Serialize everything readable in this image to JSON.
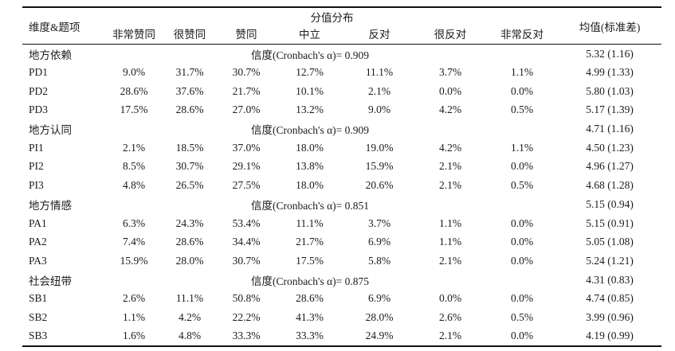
{
  "table": {
    "header": {
      "dimension_item": "维度&题项",
      "score_distribution": "分值分布",
      "mean_sd": "均值(标准差)",
      "scale_labels": [
        "非常赞同",
        "很赞同",
        "赞同",
        "中立",
        "反对",
        "很反对",
        "非常反对"
      ]
    },
    "groups": [
      {
        "dimension": "地方依赖",
        "reliability": "信度(Cronbach's α)= 0.909",
        "mean_sd": "5.32 (1.16)",
        "items": [
          {
            "label": "PD1",
            "values": [
              "9.0%",
              "31.7%",
              "30.7%",
              "12.7%",
              "11.1%",
              "3.7%",
              "1.1%"
            ],
            "mean_sd": "4.99 (1.33)"
          },
          {
            "label": "PD2",
            "values": [
              "28.6%",
              "37.6%",
              "21.7%",
              "10.1%",
              "2.1%",
              "0.0%",
              "0.0%"
            ],
            "mean_sd": "5.80 (1.03)"
          },
          {
            "label": "PD3",
            "values": [
              "17.5%",
              "28.6%",
              "27.0%",
              "13.2%",
              "9.0%",
              "4.2%",
              "0.5%"
            ],
            "mean_sd": "5.17 (1.39)"
          }
        ]
      },
      {
        "dimension": "地方认同",
        "reliability": "信度(Cronbach's α)= 0.909",
        "mean_sd": "4.71 (1.16)",
        "items": [
          {
            "label": "PI1",
            "values": [
              "2.1%",
              "18.5%",
              "37.0%",
              "18.0%",
              "19.0%",
              "4.2%",
              "1.1%"
            ],
            "mean_sd": "4.50 (1.23)"
          },
          {
            "label": "PI2",
            "values": [
              "8.5%",
              "30.7%",
              "29.1%",
              "13.8%",
              "15.9%",
              "2.1%",
              "0.0%"
            ],
            "mean_sd": "4.96 (1.27)"
          },
          {
            "label": "PI3",
            "values": [
              "4.8%",
              "26.5%",
              "27.5%",
              "18.0%",
              "20.6%",
              "2.1%",
              "0.5%"
            ],
            "mean_sd": "4.68 (1.28)"
          }
        ]
      },
      {
        "dimension": "地方情感",
        "reliability": "信度(Cronbach's α)= 0.851",
        "mean_sd": "5.15 (0.94)",
        "items": [
          {
            "label": "PA1",
            "values": [
              "6.3%",
              "24.3%",
              "53.4%",
              "11.1%",
              "3.7%",
              "1.1%",
              "0.0%"
            ],
            "mean_sd": "5.15 (0.91)"
          },
          {
            "label": "PA2",
            "values": [
              "7.4%",
              "28.6%",
              "34.4%",
              "21.7%",
              "6.9%",
              "1.1%",
              "0.0%"
            ],
            "mean_sd": "5.05 (1.08)"
          },
          {
            "label": "PA3",
            "values": [
              "15.9%",
              "28.0%",
              "30.7%",
              "17.5%",
              "5.8%",
              "2.1%",
              "0.0%"
            ],
            "mean_sd": "5.24 (1.21)"
          }
        ]
      },
      {
        "dimension": "社会纽带",
        "reliability": "信度(Cronbach's α)= 0.875",
        "mean_sd": "4.31 (0.83)",
        "items": [
          {
            "label": "SB1",
            "values": [
              "2.6%",
              "11.1%",
              "50.8%",
              "28.6%",
              "6.9%",
              "0.0%",
              "0.0%"
            ],
            "mean_sd": "4.74 (0.85)"
          },
          {
            "label": "SB2",
            "values": [
              "1.1%",
              "4.2%",
              "22.2%",
              "41.3%",
              "28.0%",
              "2.6%",
              "0.5%"
            ],
            "mean_sd": "3.99 (0.96)"
          },
          {
            "label": "SB3",
            "values": [
              "1.6%",
              "4.8%",
              "33.3%",
              "33.3%",
              "24.9%",
              "2.1%",
              "0.0%"
            ],
            "mean_sd": "4.19 (0.99)"
          }
        ]
      }
    ]
  }
}
